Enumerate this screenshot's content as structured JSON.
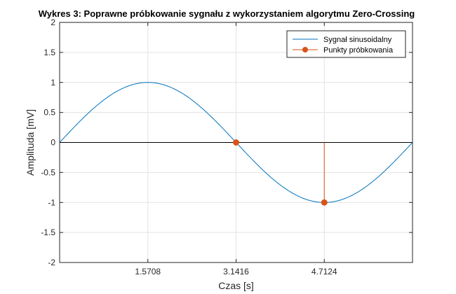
{
  "chart_data": {
    "type": "line",
    "title": "Wykres 3: Poprawne próbkowanie sygnału z wykorzystaniem algorytmu Zero-Crossing",
    "xlabel": "Czas [s]",
    "ylabel": "Amplituda [mV]",
    "xlim": [
      0,
      6.2832
    ],
    "ylim": [
      -2,
      2
    ],
    "xticks": [
      1.5708,
      3.1416,
      4.7124
    ],
    "xtick_labels": [
      "1.5708",
      "3.1416",
      "4.7124"
    ],
    "yticks": [
      -2,
      -1.5,
      -1,
      -0.5,
      0,
      0.5,
      1,
      1.5,
      2
    ],
    "ytick_labels": [
      "-2",
      "-1.5",
      "-1",
      "-0.5",
      "0",
      "0.5",
      "1",
      "1.5",
      "2"
    ],
    "grid": true,
    "legend_position": "top-right",
    "series": [
      {
        "name": "Sygnał sinusoidalny",
        "kind": "line",
        "function": "sin",
        "x_range": [
          0,
          6.2832
        ],
        "color": "#0072BD"
      },
      {
        "name": "Punkty próbkowania",
        "kind": "stem",
        "x": [
          3.1416,
          4.7124
        ],
        "y": [
          0,
          -1
        ],
        "color": "#D95319"
      }
    ],
    "zero_line_color": "#000000"
  }
}
